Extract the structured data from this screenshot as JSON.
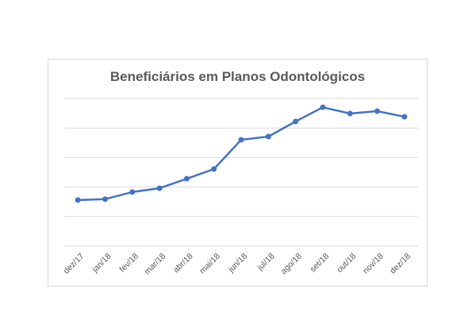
{
  "chart_data": {
    "type": "line",
    "title": "Beneficiários em Planos Odontológicos",
    "xlabel": "",
    "ylabel": "",
    "categories": [
      "dez/17",
      "jan/18",
      "fev/18",
      "mar/18",
      "abr/18",
      "mai/18",
      "jun/18",
      "jul/18",
      "ago/18",
      "set/18",
      "out/18",
      "nov/18",
      "dez/18"
    ],
    "series": [
      {
        "name": "Beneficiários",
        "color": "#4472c4",
        "values": [
          1.56,
          1.59,
          1.83,
          1.96,
          2.28,
          2.61,
          3.6,
          3.71,
          4.22,
          4.7,
          4.49,
          4.57,
          4.38
        ]
      }
    ],
    "ylim": [
      0,
      5
    ],
    "y_gridlines": 6,
    "y_tick_labels_visible": false,
    "grid": true,
    "legend": "none",
    "marker": "circle"
  },
  "colors": {
    "line": "#4472c4",
    "grid": "#d9d9d9",
    "text": "#595959",
    "border": "#d9d9d9"
  }
}
